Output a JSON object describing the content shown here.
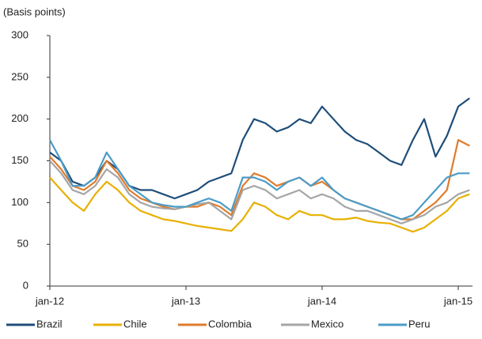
{
  "chart_data": {
    "type": "line",
    "y_label": "(Basis points)",
    "categories": [
      "jan-12",
      null,
      null,
      null,
      null,
      null,
      null,
      null,
      null,
      null,
      null,
      null,
      "jan-13",
      null,
      null,
      null,
      null,
      null,
      null,
      null,
      null,
      null,
      null,
      null,
      "jan-14",
      null,
      null,
      null,
      null,
      null,
      null,
      null,
      null,
      null,
      null,
      null,
      "jan-15",
      null
    ],
    "series": [
      {
        "name": "Brazil",
        "color": "#1f4e79",
        "values": [
          160,
          150,
          125,
          120,
          130,
          150,
          140,
          120,
          115,
          115,
          110,
          105,
          110,
          115,
          125,
          130,
          135,
          175,
          200,
          195,
          185,
          190,
          200,
          195,
          215,
          200,
          185,
          175,
          170,
          160,
          150,
          145,
          175,
          200,
          155,
          180,
          215,
          225
        ]
      },
      {
        "name": "Chile",
        "color": "#e8b000",
        "values": [
          130,
          115,
          100,
          90,
          110,
          125,
          115,
          100,
          90,
          85,
          80,
          78,
          75,
          72,
          70,
          68,
          66,
          80,
          100,
          95,
          85,
          80,
          90,
          85,
          85,
          80,
          80,
          82,
          78,
          76,
          75,
          70,
          65,
          70,
          80,
          90,
          105,
          110
        ]
      },
      {
        "name": "Colombia",
        "color": "#e07b2a",
        "values": [
          155,
          140,
          120,
          115,
          125,
          150,
          135,
          115,
          105,
          100,
          95,
          92,
          95,
          95,
          100,
          95,
          85,
          120,
          135,
          130,
          120,
          125,
          130,
          120,
          125,
          115,
          105,
          100,
          95,
          90,
          85,
          80,
          80,
          90,
          100,
          115,
          175,
          168
        ]
      },
      {
        "name": "Mexico",
        "color": "#a5a5a5",
        "values": [
          150,
          135,
          115,
          110,
          120,
          140,
          130,
          110,
          100,
          95,
          93,
          92,
          95,
          98,
          100,
          90,
          80,
          115,
          120,
          115,
          105,
          110,
          115,
          105,
          110,
          105,
          95,
          90,
          90,
          85,
          80,
          75,
          80,
          85,
          95,
          100,
          110,
          115
        ]
      },
      {
        "name": "Peru",
        "color": "#4a9cc8",
        "values": [
          175,
          150,
          120,
          120,
          130,
          160,
          140,
          120,
          110,
          100,
          97,
          95,
          95,
          100,
          105,
          100,
          90,
          130,
          130,
          125,
          115,
          125,
          130,
          120,
          130,
          115,
          105,
          100,
          95,
          90,
          85,
          80,
          85,
          100,
          115,
          130,
          135,
          135
        ]
      }
    ],
    "ylim": [
      0,
      300
    ],
    "yticks": [
      0,
      50,
      100,
      150,
      200,
      250,
      300
    ],
    "grid": false
  }
}
